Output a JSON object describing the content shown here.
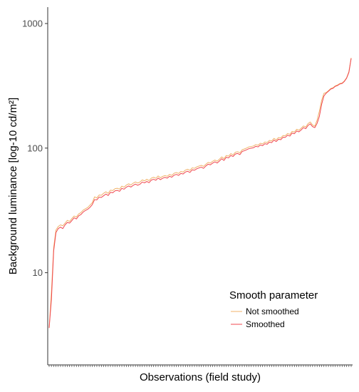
{
  "chart_data": {
    "type": "line",
    "xlabel": "Observations (field study)",
    "ylabel": "Background luminance [log-10 cd/m²]",
    "y_scale": "log10",
    "ylim": [
      3,
      1000
    ],
    "yticks": [
      "10",
      "100",
      "1000"
    ],
    "x_tick_labels_shown": false,
    "grid": false,
    "legend": {
      "title": "Smooth parameter",
      "placement": "bottom-right",
      "entries": [
        "Not smoothed",
        "Smoothed"
      ]
    },
    "series": [
      {
        "name": "Not smoothed",
        "color": "#f0b36a",
        "values": [
          3.6,
          7.0,
          16.0,
          22.0,
          23.5,
          24.2,
          23.8,
          25.0,
          26.3,
          25.8,
          27.2,
          28.5,
          28.0,
          29.6,
          30.4,
          31.8,
          32.6,
          33.4,
          34.9,
          36.5,
          40.6,
          39.8,
          42.0,
          41.8,
          43.4,
          44.6,
          43.3,
          46.0,
          45.6,
          47.2,
          47.6,
          46.8,
          49.5,
          48.6,
          50.5,
          51.7,
          50.6,
          52.3,
          53.5,
          52.4,
          53.4,
          55.6,
          54.6,
          56.2,
          54.8,
          57.4,
          58.3,
          57.2,
          59.8,
          57.8,
          59.3,
          60.2,
          59.4,
          61.5,
          60.4,
          62.8,
          63.7,
          62.6,
          64.9,
          64.3,
          66.6,
          67.6,
          66.2,
          69.4,
          68.8,
          70.6,
          71.8,
          72.7,
          71.3,
          74.2,
          76.8,
          75.9,
          78.4,
          80.2,
          78.5,
          81.5,
          85.0,
          82.2,
          87.3,
          86.2,
          90.2,
          88.4,
          92.6,
          93.6,
          91.6,
          97.0,
          98.4,
          100.2,
          102.3,
          103.0,
          104.0,
          106.6,
          105.5,
          109.4,
          108.0,
          112.0,
          110.8,
          115.3,
          114.2,
          119.6,
          116.5,
          121.5,
          120.5,
          126.0,
          125.8,
          131.0,
          128.8,
          136.2,
          134.6,
          141.6,
          139.2,
          144.5,
          150.6,
          147.6,
          157.2,
          162.0,
          153.5,
          150.2,
          168.0,
          198.0,
          242.0,
          275.0,
          279.0,
          289.0,
          300.5,
          305.0,
          316.0,
          321.0,
          330.0,
          333.0,
          346.0,
          367.0,
          411.0,
          530.0
        ]
      },
      {
        "name": "Smoothed",
        "color": "#f0474f",
        "values": [
          3.6,
          6.1,
          15.0,
          21.0,
          22.6,
          23.2,
          22.6,
          24.2,
          25.3,
          25.0,
          26.2,
          27.6,
          27.0,
          28.6,
          29.3,
          30.7,
          31.6,
          32.3,
          33.5,
          35.2,
          38.6,
          38.4,
          40.4,
          40.2,
          41.5,
          42.8,
          41.6,
          44.2,
          43.8,
          45.4,
          45.8,
          45.0,
          47.5,
          46.8,
          48.6,
          49.7,
          48.7,
          50.2,
          51.4,
          50.3,
          51.3,
          53.4,
          52.6,
          54.0,
          52.8,
          55.4,
          56.2,
          55.2,
          57.5,
          55.8,
          57.3,
          58.2,
          57.4,
          59.4,
          58.4,
          60.6,
          61.5,
          60.4,
          62.6,
          62.0,
          64.3,
          65.2,
          63.8,
          67.0,
          66.4,
          68.2,
          69.4,
          70.3,
          68.8,
          71.8,
          74.3,
          73.4,
          75.8,
          77.6,
          75.9,
          78.8,
          82.2,
          79.6,
          84.5,
          83.4,
          87.2,
          85.7,
          89.6,
          90.6,
          88.7,
          94.0,
          95.3,
          97.1,
          99.0,
          99.9,
          100.8,
          103.3,
          102.3,
          106.0,
          104.6,
          108.5,
          107.4,
          111.8,
          110.7,
          116.0,
          113.0,
          117.8,
          116.8,
          122.2,
          122.0,
          127.0,
          124.9,
          132.0,
          130.5,
          137.2,
          135.0,
          140.0,
          146.0,
          143.2,
          152.0,
          156.6,
          148.8,
          146.0,
          158.0,
          180.0,
          225.0,
          262.0,
          276.0,
          286.0,
          297.5,
          302.0,
          313.0,
          318.0,
          327.0,
          330.0,
          343.0,
          364.0,
          405.0,
          525.0
        ]
      }
    ]
  }
}
